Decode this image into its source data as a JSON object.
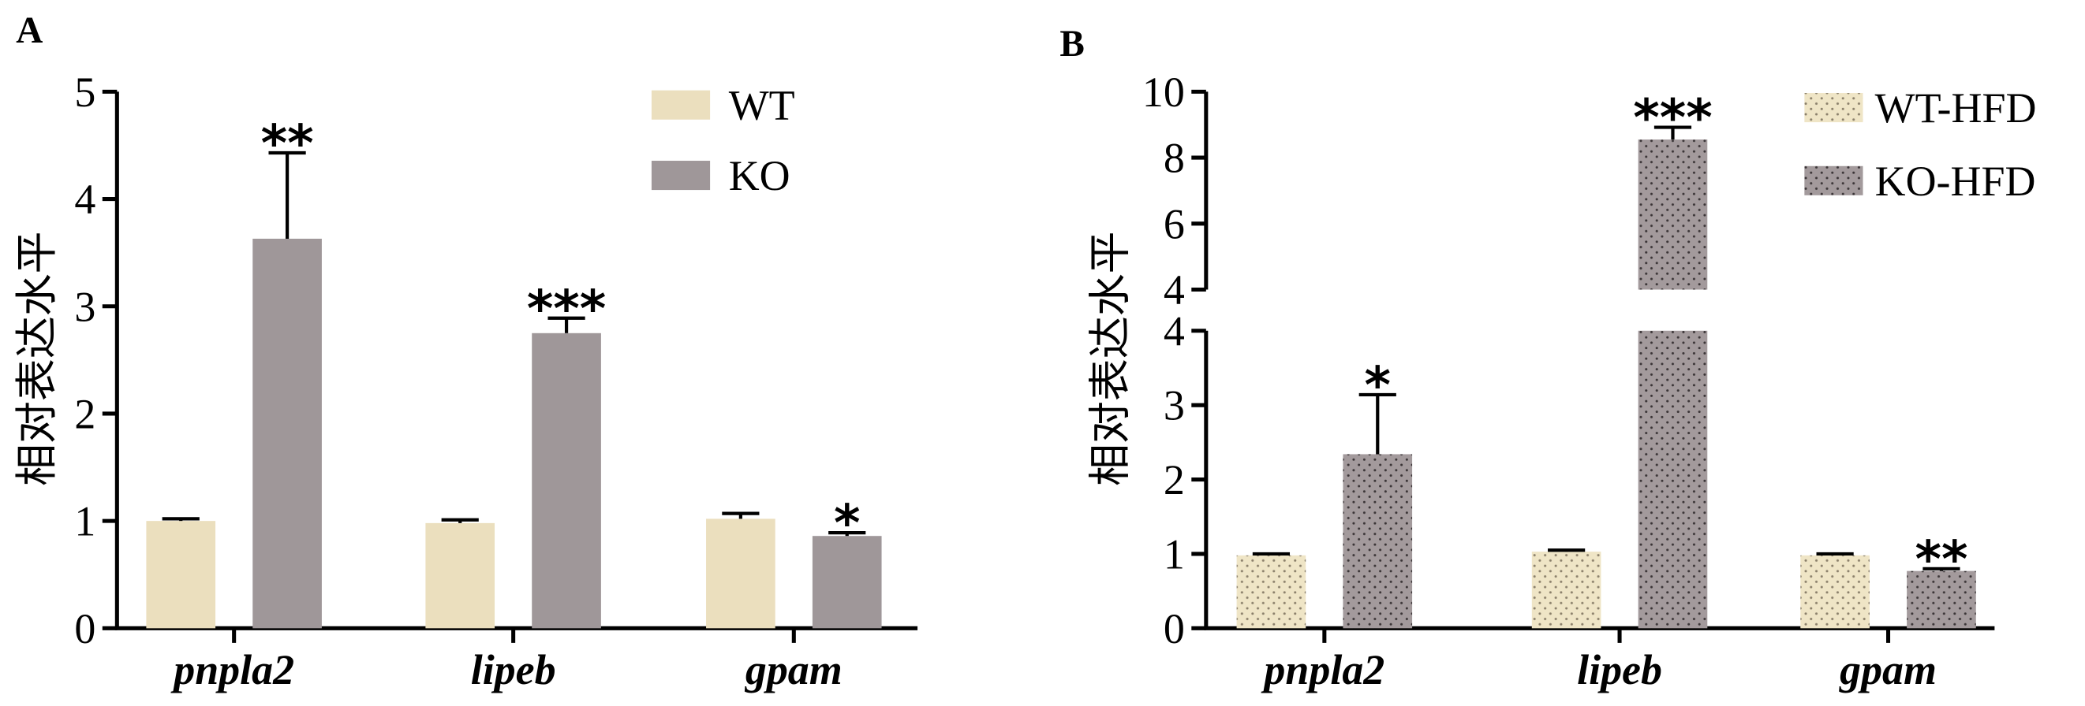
{
  "chart_data": [
    {
      "type": "bar",
      "panel": "A",
      "ylabel": "相对表达水平",
      "categories": [
        "pnpla2",
        "lipeb",
        "gpam"
      ],
      "ylim": [
        0,
        5
      ],
      "yticks": [
        0,
        1,
        2,
        3,
        4,
        5
      ],
      "legend": "upper right",
      "pattern": "none",
      "series": [
        {
          "name": "WT",
          "color": "#ebdfbe",
          "values": [
            1.0,
            0.98,
            1.02
          ],
          "errors": [
            0.02,
            0.03,
            0.05
          ]
        },
        {
          "name": "KO",
          "color": "#9f9799",
          "values": [
            3.63,
            2.75,
            0.86
          ],
          "errors": [
            0.8,
            0.14,
            0.03
          ],
          "annotations": [
            "**",
            "***",
            "*"
          ]
        }
      ]
    },
    {
      "type": "bar",
      "panel": "B",
      "ylabel": "相对表达水平",
      "categories": [
        "pnpla2",
        "lipeb",
        "gpam"
      ],
      "segments": [
        {
          "ylim": [
            0,
            4
          ],
          "yticks": [
            0,
            1,
            2,
            3,
            4
          ]
        },
        {
          "ylim": [
            4,
            10
          ],
          "yticks": [
            4,
            6,
            8,
            10
          ]
        }
      ],
      "legend": "upper right",
      "pattern": "dots",
      "series": [
        {
          "name": "WT-HFD",
          "color": "#efe5c6",
          "values": [
            0.98,
            1.03,
            0.98
          ],
          "errors": [
            0.02,
            0.02,
            0.02
          ]
        },
        {
          "name": "KO-HFD",
          "color": "#a39a9c",
          "values": [
            2.34,
            8.55,
            0.77
          ],
          "errors": [
            0.8,
            0.37,
            0.03
          ],
          "annotations": [
            "*",
            "***",
            "**"
          ]
        }
      ]
    }
  ]
}
